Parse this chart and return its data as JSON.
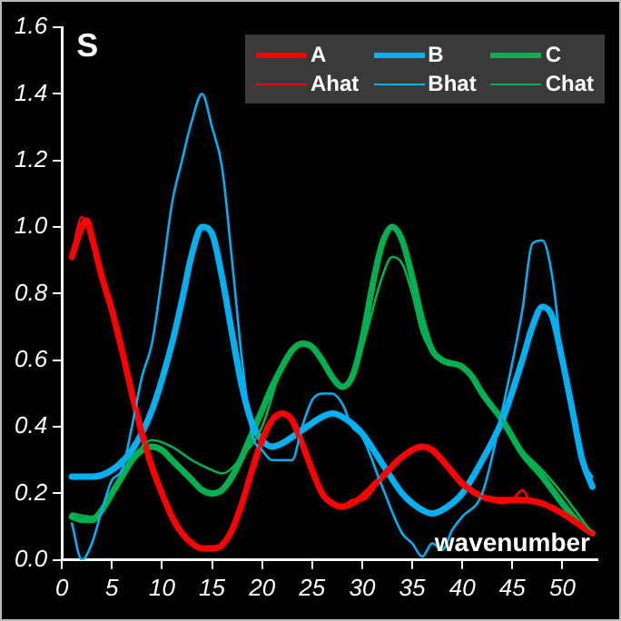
{
  "chart_data": {
    "type": "line",
    "title": "S",
    "xlabel": "wavenumber",
    "xlim": [
      0,
      53.5
    ],
    "xticks": [
      0,
      5,
      10,
      15,
      20,
      25,
      30,
      35,
      40,
      45,
      50
    ],
    "ylim": [
      0,
      1.6
    ],
    "yticks": [
      {
        "value": 0,
        "label": "0.0"
      },
      {
        "value": 0.2,
        "label": "0.2"
      },
      {
        "value": 0.4,
        "label": "0.4"
      },
      {
        "value": 0.6,
        "label": "0.6"
      },
      {
        "value": 0.8,
        "label": "0.8"
      },
      {
        "value": 1,
        "label": "1.0"
      },
      {
        "value": 1.2,
        "label": "1.2"
      },
      {
        "value": 1.4,
        "label": "1.4"
      },
      {
        "value": 1.6,
        "label": "1.6"
      }
    ],
    "grid": false,
    "legend": "top right",
    "marker": "none",
    "line_style": "solid",
    "series": [
      {
        "name": "A",
        "color": "#ff0000",
        "x": [
          1,
          2,
          2.5,
          3,
          4,
          5,
          6,
          7,
          8,
          9,
          10,
          11,
          12,
          13,
          14,
          15,
          16,
          17,
          18,
          19,
          20,
          21,
          22,
          23,
          24,
          25,
          26,
          27,
          28,
          29,
          30,
          32,
          34,
          36,
          37,
          38,
          40,
          42,
          44,
          46,
          48,
          50,
          52,
          53
        ],
        "values": [
          0.91,
          1.0,
          1.02,
          0.97,
          0.85,
          0.75,
          0.63,
          0.5,
          0.38,
          0.28,
          0.2,
          0.13,
          0.08,
          0.05,
          0.035,
          0.035,
          0.045,
          0.09,
          0.17,
          0.27,
          0.36,
          0.42,
          0.44,
          0.42,
          0.35,
          0.27,
          0.2,
          0.17,
          0.16,
          0.17,
          0.19,
          0.25,
          0.31,
          0.34,
          0.33,
          0.3,
          0.23,
          0.19,
          0.18,
          0.18,
          0.17,
          0.14,
          0.1,
          0.08
        ]
      },
      {
        "name": "B",
        "color": "#00b0f0",
        "x": [
          1,
          3,
          5,
          7,
          9,
          11,
          12,
          13,
          14,
          15,
          16,
          17,
          18,
          19,
          20,
          21,
          22,
          24,
          26,
          27,
          28,
          30,
          32,
          34,
          36,
          37,
          38,
          40,
          42,
          44,
          46,
          47,
          48,
          49,
          50,
          51,
          52,
          53
        ],
        "values": [
          0.25,
          0.25,
          0.27,
          0.33,
          0.45,
          0.65,
          0.78,
          0.92,
          1.0,
          0.98,
          0.85,
          0.68,
          0.52,
          0.41,
          0.36,
          0.34,
          0.35,
          0.39,
          0.43,
          0.44,
          0.43,
          0.38,
          0.29,
          0.2,
          0.15,
          0.14,
          0.15,
          0.2,
          0.3,
          0.42,
          0.6,
          0.7,
          0.76,
          0.73,
          0.6,
          0.45,
          0.3,
          0.22
        ]
      },
      {
        "name": "C",
        "color": "#00b050",
        "x": [
          1,
          2,
          3,
          4,
          5,
          6,
          7,
          8,
          9,
          10,
          11,
          12,
          13,
          14,
          15,
          16,
          17,
          18,
          19,
          20,
          21,
          22,
          23,
          24,
          25,
          26,
          27,
          28,
          29,
          30,
          31,
          32,
          33,
          34,
          35,
          36,
          37,
          38,
          40,
          41,
          42,
          44,
          46,
          48,
          50,
          52,
          53
        ],
        "values": [
          0.13,
          0.12,
          0.12,
          0.15,
          0.2,
          0.25,
          0.3,
          0.33,
          0.34,
          0.33,
          0.3,
          0.27,
          0.24,
          0.21,
          0.2,
          0.21,
          0.25,
          0.31,
          0.38,
          0.45,
          0.52,
          0.58,
          0.63,
          0.65,
          0.64,
          0.6,
          0.55,
          0.52,
          0.55,
          0.66,
          0.82,
          0.95,
          1.0,
          0.96,
          0.85,
          0.72,
          0.63,
          0.6,
          0.58,
          0.55,
          0.5,
          0.42,
          0.32,
          0.25,
          0.17,
          0.1,
          0.08
        ]
      },
      {
        "name": "Ahat",
        "color": "#ff0000",
        "x": [
          1,
          2,
          3,
          4,
          5,
          6,
          7,
          8,
          9,
          10,
          11,
          12,
          13,
          14,
          15,
          16,
          17,
          18,
          19,
          20,
          21,
          22,
          23,
          24,
          25,
          26,
          27,
          28,
          29,
          30,
          32,
          34,
          36,
          37,
          38,
          40,
          41,
          42,
          44,
          45,
          46,
          47,
          48,
          50,
          52,
          53
        ],
        "values": [
          0.92,
          1.03,
          0.95,
          0.86,
          0.74,
          0.63,
          0.5,
          0.38,
          0.28,
          0.2,
          0.13,
          0.08,
          0.05,
          0.035,
          0.04,
          0.045,
          0.09,
          0.17,
          0.27,
          0.36,
          0.42,
          0.44,
          0.42,
          0.35,
          0.27,
          0.2,
          0.17,
          0.16,
          0.18,
          0.18,
          0.25,
          0.31,
          0.34,
          0.33,
          0.3,
          0.22,
          0.21,
          0.19,
          0.17,
          0.18,
          0.21,
          0.17,
          0.17,
          0.14,
          0.1,
          0.08
        ]
      },
      {
        "name": "Bhat",
        "color": "#00b0f0",
        "x": [
          1,
          2,
          3,
          4,
          5,
          6,
          7,
          8,
          9,
          10,
          11,
          12,
          13,
          14,
          15,
          16,
          17,
          18,
          19,
          20,
          21,
          22,
          23,
          24,
          25,
          26,
          27,
          28,
          29,
          30,
          32,
          34,
          35,
          36,
          37,
          38,
          39,
          40,
          42,
          44,
          46,
          47,
          48,
          49,
          50,
          51,
          52,
          53
        ],
        "values": [
          0.11,
          0.0,
          0.05,
          0.15,
          0.24,
          0.27,
          0.4,
          0.55,
          0.65,
          0.85,
          1.07,
          1.2,
          1.32,
          1.4,
          1.3,
          1.18,
          0.9,
          0.6,
          0.38,
          0.33,
          0.3,
          0.3,
          0.3,
          0.4,
          0.48,
          0.5,
          0.5,
          0.47,
          0.4,
          0.37,
          0.22,
          0.08,
          0.05,
          0.01,
          0.05,
          0.03,
          0.09,
          0.13,
          0.2,
          0.45,
          0.75,
          0.95,
          0.96,
          0.85,
          0.6,
          0.45,
          0.3,
          0.25
        ]
      },
      {
        "name": "Chat",
        "color": "#00b050",
        "x": [
          1,
          3,
          5,
          7,
          9,
          11,
          13,
          15,
          16,
          18,
          20,
          22,
          24,
          26,
          28,
          30,
          32,
          33,
          34,
          35,
          36,
          38,
          40,
          42,
          44,
          46,
          48,
          50,
          52,
          53
        ],
        "values": [
          0.14,
          0.13,
          0.2,
          0.3,
          0.36,
          0.34,
          0.3,
          0.27,
          0.26,
          0.31,
          0.4,
          0.58,
          0.65,
          0.6,
          0.52,
          0.64,
          0.85,
          0.91,
          0.89,
          0.8,
          0.68,
          0.6,
          0.58,
          0.51,
          0.42,
          0.33,
          0.27,
          0.2,
          0.12,
          0.08
        ]
      }
    ]
  }
}
